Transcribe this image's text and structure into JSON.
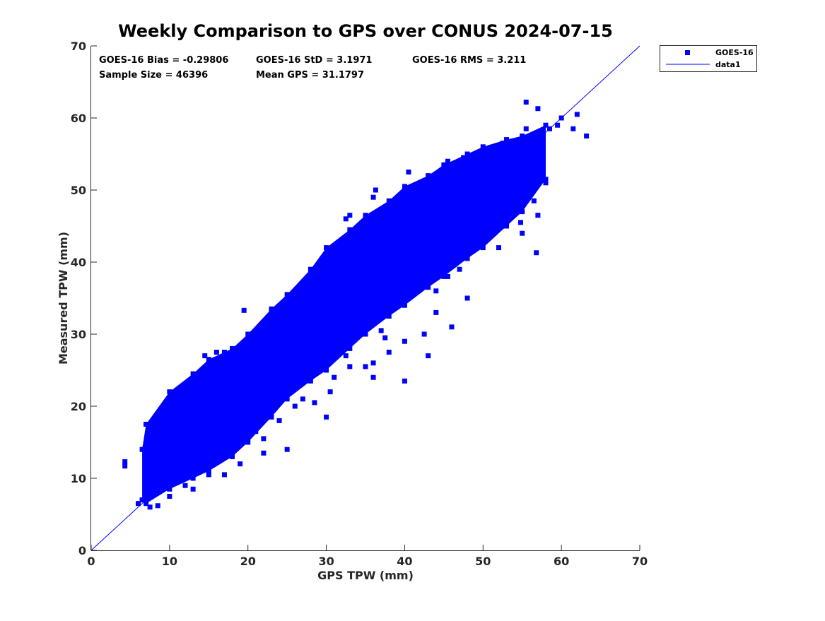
{
  "chart_data": {
    "type": "scatter",
    "title": "Weekly Comparison to GPS over CONUS 2024-07-15",
    "xlabel": "GPS TPW (mm)",
    "ylabel": "Measured TPW (mm)",
    "xlim": [
      0,
      70
    ],
    "ylim": [
      0,
      70
    ],
    "xticks": [
      0,
      10,
      20,
      30,
      40,
      50,
      60,
      70
    ],
    "yticks": [
      0,
      10,
      20,
      30,
      40,
      50,
      60,
      70
    ],
    "grid": false,
    "legend_position": "outside-top-right",
    "stats": {
      "bias": "GOES-16 Bias = -0.29806",
      "std": "GOES-16 StD = 3.1971",
      "rms": "GOES-16 RMS = 3.211",
      "sample_size": "Sample Size = 46396",
      "mean_gps": "Mean GPS = 31.1797"
    },
    "series": [
      {
        "name": "GOES-16",
        "kind": "scatter",
        "color": "#0000ff",
        "dense_core_envelope": [
          [
            6.5,
            7,
            14
          ],
          [
            7,
            6.5,
            17.5
          ],
          [
            10,
            8.5,
            22
          ],
          [
            13,
            10,
            24.5
          ],
          [
            15,
            11,
            26.5
          ],
          [
            18,
            13,
            28
          ],
          [
            20,
            15,
            30
          ],
          [
            23,
            18.5,
            33.5
          ],
          [
            25,
            21,
            35.5
          ],
          [
            28,
            23.5,
            39
          ],
          [
            30,
            25,
            42
          ],
          [
            33,
            28,
            44.5
          ],
          [
            35,
            30,
            46.5
          ],
          [
            38,
            32.5,
            48.5
          ],
          [
            40,
            34,
            50.5
          ],
          [
            43,
            36.5,
            52
          ],
          [
            45,
            38,
            53.5
          ],
          [
            48,
            40.5,
            55
          ],
          [
            50,
            42,
            56
          ],
          [
            53,
            45,
            57
          ],
          [
            55,
            47,
            57.5
          ],
          [
            58,
            51.5,
            59
          ]
        ],
        "points": [
          [
            4.3,
            12.3
          ],
          [
            4.3,
            11.7
          ],
          [
            6,
            6.5
          ],
          [
            7.5,
            6
          ],
          [
            8.5,
            6.2
          ],
          [
            19.5,
            33.3
          ],
          [
            27,
            36.5
          ],
          [
            32.5,
            46
          ],
          [
            33,
            46.5
          ],
          [
            36,
            49
          ],
          [
            36.3,
            50
          ],
          [
            40.5,
            52.5
          ],
          [
            41.5,
            50
          ],
          [
            45,
            49.5
          ],
          [
            45.5,
            54
          ],
          [
            46.5,
            52
          ],
          [
            47.5,
            54.5
          ],
          [
            48.5,
            52.5
          ],
          [
            50.5,
            55.5
          ],
          [
            52.5,
            56.5
          ],
          [
            55.5,
            62.2
          ],
          [
            57,
            61.3
          ],
          [
            55.5,
            58.5
          ],
          [
            60,
            60
          ],
          [
            62,
            60.5
          ],
          [
            63.2,
            57.5
          ],
          [
            61.5,
            58.5
          ],
          [
            59.5,
            59
          ],
          [
            58.5,
            58.5
          ],
          [
            56.8,
            41.3
          ],
          [
            54.8,
            45.5
          ],
          [
            55,
            44
          ],
          [
            57,
            46.5
          ],
          [
            56.5,
            48.5
          ],
          [
            58,
            51
          ],
          [
            50.5,
            49
          ],
          [
            50.5,
            46
          ],
          [
            48,
            43
          ],
          [
            45,
            41
          ],
          [
            45.5,
            38
          ],
          [
            46,
            31
          ],
          [
            42.5,
            30
          ],
          [
            40,
            29
          ],
          [
            37.5,
            29.5
          ],
          [
            37,
            30.5
          ],
          [
            36,
            26
          ],
          [
            35,
            25.5
          ],
          [
            32.5,
            27
          ],
          [
            31,
            24
          ],
          [
            28.5,
            20.5
          ],
          [
            30,
            18.5
          ],
          [
            26,
            20
          ],
          [
            25,
            14
          ],
          [
            22,
            15.5
          ],
          [
            21,
            16.5
          ],
          [
            19,
            18
          ],
          [
            18.5,
            16
          ],
          [
            17,
            10.5
          ],
          [
            15,
            10.5
          ],
          [
            12,
            9
          ],
          [
            40,
            23.5
          ],
          [
            36,
            24
          ],
          [
            39.5,
            37.5
          ],
          [
            21,
            30
          ],
          [
            23.5,
            31
          ],
          [
            31.5,
            38.5
          ],
          [
            29.5,
            38.5
          ],
          [
            26.5,
            36
          ],
          [
            16,
            27.5
          ],
          [
            14.5,
            27
          ],
          [
            17,
            27.5
          ],
          [
            11,
            22
          ],
          [
            10,
            19
          ],
          [
            7,
            17.5
          ],
          [
            43,
            44.5
          ],
          [
            41,
            37
          ],
          [
            44,
            36
          ],
          [
            47,
            39
          ],
          [
            49,
            44
          ],
          [
            52,
            48
          ],
          [
            53,
            51
          ],
          [
            42,
            46
          ],
          [
            38,
            45
          ],
          [
            34,
            40
          ],
          [
            28,
            35
          ],
          [
            24,
            29
          ],
          [
            20,
            25
          ],
          [
            14,
            20
          ],
          [
            9,
            15
          ],
          [
            8,
            12
          ],
          [
            33,
            25.5
          ],
          [
            30.5,
            22
          ],
          [
            27,
            21
          ],
          [
            24,
            18
          ],
          [
            22,
            13.5
          ],
          [
            19,
            12
          ],
          [
            13,
            8.5
          ],
          [
            10,
            7.5
          ],
          [
            44,
            33
          ],
          [
            48,
            35
          ],
          [
            52,
            42
          ],
          [
            43,
            27
          ],
          [
            38,
            27.5
          ]
        ]
      },
      {
        "name": "data1",
        "kind": "line",
        "color": "#0000ff",
        "x": [
          0,
          70
        ],
        "y": [
          0,
          70
        ]
      }
    ]
  }
}
